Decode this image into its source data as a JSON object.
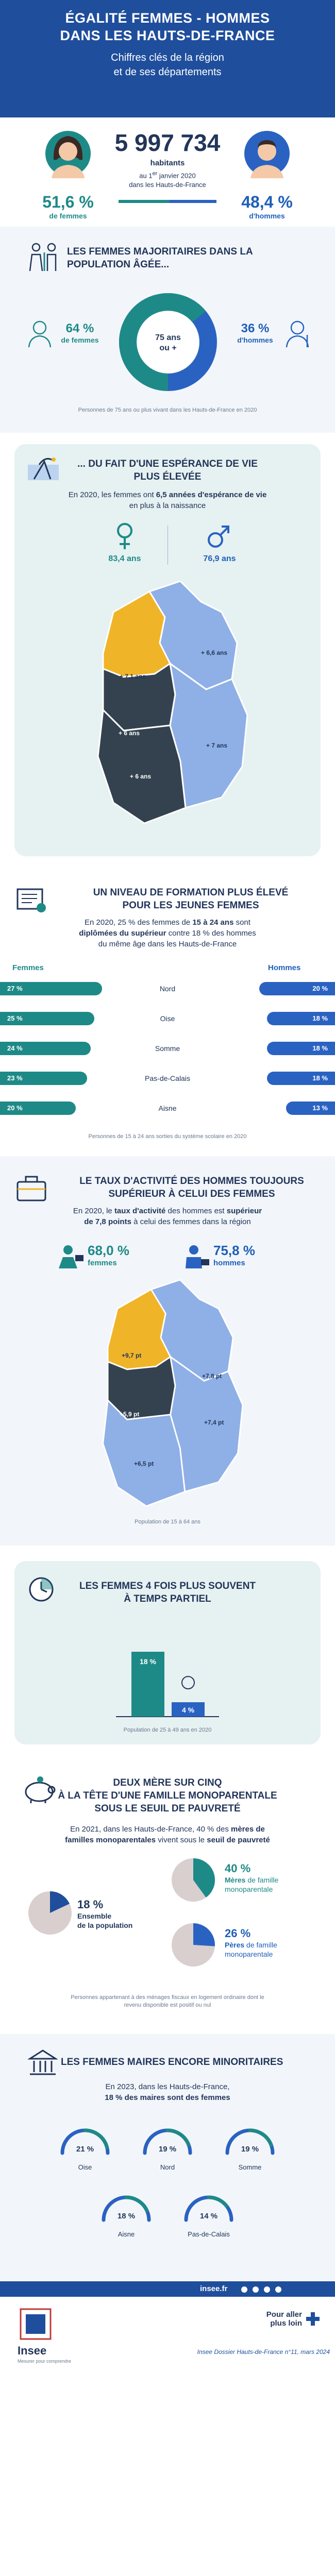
{
  "header": {
    "title_line1": "ÉGALITÉ FEMMES - HOMMES",
    "title_line2": "DANS LES HAUTS-DE-FRANCE",
    "subtitle_line1": "Chiffres clés de la région",
    "subtitle_line2": "et de ses départements"
  },
  "population": {
    "total": "5 997 734",
    "unit": "habitants",
    "date_line_a": "au 1",
    "date_sup": "er",
    "date_line_b": " janvier 2020",
    "date_line2": "dans les Hauts-de-France",
    "women_pct": "51,6 %",
    "women_label": "de femmes",
    "men_pct": "48,4 %",
    "men_label": "d'hommes",
    "women_share": 51.6
  },
  "elderly": {
    "title_line1": "LES FEMMES MAJORITAIRES DANS LA",
    "title_line2": "POPULATION ÂGÉE...",
    "women_pct": "64 %",
    "women_label": "de femmes",
    "men_pct": "36 %",
    "men_label": "d'hommes",
    "donut_center_line1": "75 ans",
    "donut_center_line2": "ou +",
    "women_share": 64,
    "note": "Personnes de 75 ans ou plus vivant dans les Hauts-de-France en 2020",
    "colors": {
      "women": "#1e8a87",
      "men": "#2a62c2"
    }
  },
  "life": {
    "title_line1": "... DU FAIT D'UNE ESPÉRANCE DE VIE",
    "title_line2": "PLUS ÉLEVÉE",
    "text_a": "En 2020, les femmes ont ",
    "text_b": "6,5 années d'espérance de vie",
    "text_c": "en plus à la naissance",
    "women_value": "83,4 ans",
    "men_value": "76,9 ans",
    "map_labels": [
      "+ 7,1 ans",
      "+ 6,6 ans",
      "+ 6 ans",
      "+ 7 ans",
      "+ 6 ans"
    ]
  },
  "education": {
    "title_line1": "UN NIVEAU DE FORMATION PLUS ÉLEVÉ",
    "title_line2": "POUR LES JEUNES FEMMES",
    "text_a": "En 2020, 25 % des femmes de ",
    "text_b": "15 à 24 ans",
    "text_c": " sont",
    "text_d": "diplômées du supérieur",
    "text_e": " contre 18 % des hommes",
    "text_f": "du même âge dans les Hauts-de-France",
    "women_header": "Femmes",
    "men_header": "Hommes",
    "note": "Personnes de 15 à 24 ans sorties du système scolaire en 2020",
    "rows": [
      {
        "dept": "Nord",
        "women": "27 %",
        "men": "20 %",
        "wv": 27,
        "mv": 20
      },
      {
        "dept": "Oise",
        "women": "25 %",
        "men": "18 %",
        "wv": 25,
        "mv": 18
      },
      {
        "dept": "Somme",
        "women": "24 %",
        "men": "18 %",
        "wv": 24,
        "mv": 18
      },
      {
        "dept": "Pas-de-Calais",
        "women": "23 %",
        "men": "18 %",
        "wv": 23,
        "mv": 18
      },
      {
        "dept": "Aisne",
        "women": "20 %",
        "men": "13 %",
        "wv": 20,
        "mv": 13
      }
    ]
  },
  "activity": {
    "title_line1": "LE TAUX D'ACTIVITÉ DES HOMMES TOUJOURS",
    "title_line2": "SUPÉRIEUR À CELUI DES FEMMES",
    "text_a": "En 2020, le ",
    "text_b": "taux d'activité",
    "text_c": " des hommes est ",
    "text_d": "supérieur",
    "text_e": "de 7,8 points",
    "text_f": " à celui des femmes dans la région",
    "women_value": "68,0 %",
    "women_label": "femmes",
    "men_value": "75,8 %",
    "men_label": "hommes",
    "map_labels": [
      "+9,7 pt",
      "+7,8 pt",
      "+5,9 pt",
      "+7,4 pt",
      "+6,5 pt"
    ],
    "note": "Population de 15 à 64 ans"
  },
  "parttime": {
    "title_line1": "LES FEMMES 4 FOIS PLUS SOUVENT",
    "title_line2": "À TEMPS PARTIEL",
    "women_value": "18 %",
    "men_value": "4 %",
    "wv": 18,
    "mv": 4,
    "note": "Population de 25 à 49 ans en 2020"
  },
  "single": {
    "title_line1": "DEUX MÈRE SUR CINQ",
    "title_line2": "À LA TÊTE D'UNE FAMILLE MONOPARENTALE",
    "title_line3": "SOUS LE SEUIL DE PAUVRETÉ",
    "text_a": "En 2021, dans les Hauts-de-France, 40 % des ",
    "text_b": "mères de",
    "text_c": "familles monoparentales",
    "text_d": " vivent sous le ",
    "text_e": "seuil de pauvreté",
    "mothers_pct": "40 %",
    "mothers_label1": "Mères",
    "mothers_label2": " de famille",
    "mothers_label3": "monoparentale",
    "all_pct": "18 %",
    "all_label1": "Ensemble",
    "all_label2": "de la population",
    "fathers_pct": "26 %",
    "fathers_label1": "Pères",
    "fathers_label2": " de famille",
    "fathers_label3": "monoparentale",
    "mothers_share": 40,
    "all_share": 18,
    "fathers_share": 26,
    "note_line1": "Personnes appartenant à des ménages fiscaux en logement ordinaire dont le",
    "note_line2": "revenu disponible est positif ou nul"
  },
  "mayors": {
    "title": "LES FEMMES MAIRES ENCORE MINORITAIRES",
    "text_a": "En 2023, dans les Hauts-de-France,",
    "text_b": "18 % ",
    "text_c": "des maires sont des femmes",
    "depts": [
      {
        "name": "Oise",
        "value": "21 %",
        "v": 21
      },
      {
        "name": "Nord",
        "value": "19 %",
        "v": 19
      },
      {
        "name": "Somme",
        "value": "19 %",
        "v": 19
      },
      {
        "name": "Aisne",
        "value": "18 %",
        "v": 18
      },
      {
        "name": "Pas-de-Calais",
        "value": "14 %",
        "v": 14
      }
    ]
  },
  "footer": {
    "site": "insee.fr",
    "logo_text": "Insee",
    "logo_sub": "Mesurer pour comprendre",
    "more_line1": "Pour aller",
    "more_line2": "plus loin",
    "reference": "Insee Dossier Hauts-de-France n°11, mars 2024"
  }
}
